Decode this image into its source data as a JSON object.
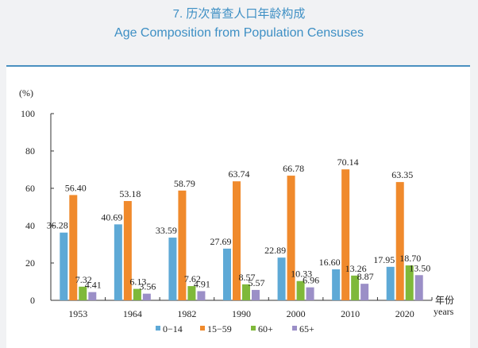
{
  "title_cn": "7. 历次普查人口年龄构成",
  "title_en": "Age Composition from Population Censuses",
  "chart_data": {
    "type": "bar",
    "ylabel": "(%)",
    "xlabel_cn": "年份",
    "xlabel_en": "years",
    "ylim": [
      0,
      100
    ],
    "yticks": [
      0,
      20,
      40,
      60,
      80,
      100
    ],
    "categories": [
      "1953",
      "1964",
      "1982",
      "1990",
      "2000",
      "2010",
      "2020"
    ],
    "series": [
      {
        "name": "0−14",
        "color": "#5ea9d6",
        "values": [
          36.28,
          40.69,
          33.59,
          27.69,
          22.89,
          16.6,
          17.95
        ]
      },
      {
        "name": "15−59",
        "color": "#f08a2c",
        "values": [
          56.4,
          53.18,
          58.79,
          63.74,
          66.78,
          70.14,
          63.35
        ]
      },
      {
        "name": "60+",
        "color": "#7fb93a",
        "values": [
          7.32,
          6.13,
          7.62,
          8.57,
          10.33,
          13.26,
          18.7
        ]
      },
      {
        "name": "65+",
        "color": "#9b8fc7",
        "values": [
          4.41,
          3.56,
          4.91,
          5.57,
          6.96,
          8.87,
          13.5
        ]
      }
    ],
    "legend": "bottom"
  }
}
